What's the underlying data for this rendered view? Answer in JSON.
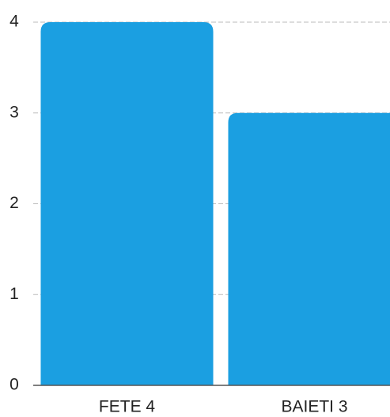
{
  "chart_data": {
    "type": "bar",
    "categories": [
      "FETE 4",
      "BAIETI 3"
    ],
    "values": [
      4,
      3
    ],
    "color": "#1b9fe1",
    "ylim": [
      0,
      4
    ],
    "yticks": [
      0,
      1,
      2,
      3,
      4
    ],
    "grid": true
  }
}
